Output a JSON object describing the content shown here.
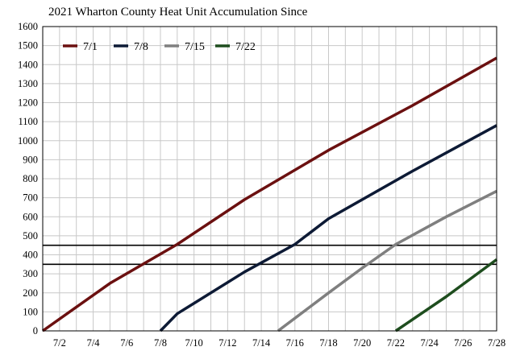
{
  "chart_data": {
    "type": "line",
    "title": "2021 Wharton County Heat Unit Accumulation Since",
    "xlabel": "",
    "ylabel": "",
    "x_range": [
      "7/1",
      "7/28"
    ],
    "x_ticks": [
      "7/2",
      "7/4",
      "7/6",
      "7/8",
      "7/10",
      "7/12",
      "7/14",
      "7/16",
      "7/18",
      "7/20",
      "7/22",
      "7/24",
      "7/26",
      "7/28"
    ],
    "ylim": [
      0,
      1600
    ],
    "y_ticks": [
      0,
      100,
      200,
      300,
      400,
      500,
      600,
      700,
      800,
      900,
      1000,
      1100,
      1200,
      1300,
      1400,
      1500,
      1600
    ],
    "grid": true,
    "legend_position": "top-left",
    "reference_lines": [
      {
        "y": 350,
        "color": "#000000"
      },
      {
        "y": 450,
        "color": "#000000"
      }
    ],
    "series": [
      {
        "name": "7/1",
        "color": "#6b1010",
        "points": [
          {
            "x": "7/1",
            "y": 0
          },
          {
            "x": "7/5",
            "y": 250
          },
          {
            "x": "7/9",
            "y": 455
          },
          {
            "x": "7/13",
            "y": 690
          },
          {
            "x": "7/18",
            "y": 950
          },
          {
            "x": "7/23",
            "y": 1185
          },
          {
            "x": "7/28",
            "y": 1435
          }
        ]
      },
      {
        "name": "7/8",
        "color": "#0d1a35",
        "points": [
          {
            "x": "7/8",
            "y": 0
          },
          {
            "x": "7/9",
            "y": 90
          },
          {
            "x": "7/13",
            "y": 310
          },
          {
            "x": "7/16",
            "y": 455
          },
          {
            "x": "7/18",
            "y": 590
          },
          {
            "x": "7/23",
            "y": 840
          },
          {
            "x": "7/28",
            "y": 1080
          }
        ]
      },
      {
        "name": "7/15",
        "color": "#7f7f7f",
        "points": [
          {
            "x": "7/15",
            "y": 0
          },
          {
            "x": "7/18",
            "y": 200
          },
          {
            "x": "7/20",
            "y": 330
          },
          {
            "x": "7/22",
            "y": 455
          },
          {
            "x": "7/25",
            "y": 600
          },
          {
            "x": "7/28",
            "y": 735
          }
        ]
      },
      {
        "name": "7/22",
        "color": "#1e4d1e",
        "points": [
          {
            "x": "7/22",
            "y": 0
          },
          {
            "x": "7/25",
            "y": 180
          },
          {
            "x": "7/28",
            "y": 375
          }
        ]
      }
    ]
  }
}
